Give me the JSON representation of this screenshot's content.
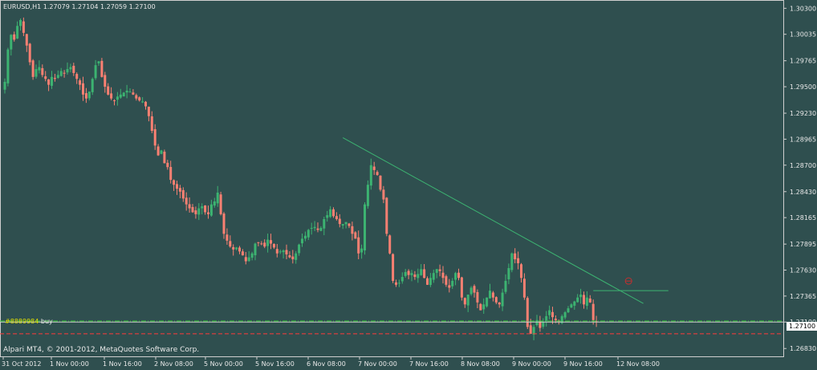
{
  "chart": {
    "symbol_header": "EURUSD,H1  1.27079 1.27104 1.27059 1.27100",
    "copyright": "Alpari MT4, © 2001-2012, MetaQuotes Software Corp.",
    "order_tag": "#8889984",
    "order_type": "buy",
    "current_price": "1.27100"
  },
  "colors": {
    "background": "#2f4f4f",
    "bull_candle": "#3cb371",
    "bear_candle": "#fa8072",
    "axis_text": "#e8e8e8",
    "trendline": "#3cb371",
    "order_line": "#32cd32",
    "sl_line": "#ff3b3b"
  },
  "chart_data": {
    "type": "candlestick",
    "price_ticks": [
      "1.30300",
      "1.30035",
      "1.29765",
      "1.29500",
      "1.29230",
      "1.28965",
      "1.28700",
      "1.28430",
      "1.28165",
      "1.27895",
      "1.27630",
      "1.27365",
      "1.27100",
      "1.26830"
    ],
    "time_ticks": [
      "31 Oct 2012",
      "1 Nov 00:00",
      "1 Nov 16:00",
      "2 Nov 08:00",
      "5 Nov 00:00",
      "5 Nov 16:00",
      "6 Nov 08:00",
      "7 Nov 00:00",
      "7 Nov 16:00",
      "8 Nov 08:00",
      "9 Nov 00:00",
      "9 Nov 16:00",
      "12 Nov 08:00"
    ],
    "ylim": [
      1.2675,
      1.3036
    ],
    "last_close": 1.271,
    "order_open_price": 1.2711,
    "stop_loss_price": 1.2698,
    "trendline": [
      {
        "bar": 108,
        "price": 1.2898
      },
      {
        "bar": 204,
        "price": 1.2729
      }
    ],
    "horizontal_segment": {
      "from_bar": 188,
      "to_bar": 212,
      "price": 1.2742
    },
    "closes": [
      1.2955,
      1.2988,
      1.3003,
      1.2998,
      1.3012,
      1.3018,
      1.3005,
      1.2992,
      1.2975,
      1.296,
      1.2968,
      1.297,
      1.2962,
      1.2958,
      1.2952,
      1.296,
      1.2958,
      1.2962,
      1.2966,
      1.2964,
      1.2968,
      1.297,
      1.2964,
      1.2958,
      1.2952,
      1.2942,
      1.2938,
      1.2945,
      1.2958,
      1.2972,
      1.2976,
      1.296,
      1.295,
      1.2942,
      1.2938,
      1.2936,
      1.294,
      1.2942,
      1.2944,
      1.2946,
      1.2945,
      1.2942,
      1.2938,
      1.2936,
      1.2935,
      1.293,
      1.292,
      1.2905,
      1.289,
      1.288,
      1.2885,
      1.2872,
      1.2868,
      1.2855,
      1.285,
      1.2846,
      1.2843,
      1.2836,
      1.283,
      1.2826,
      1.2822,
      1.282,
      1.2826,
      1.2828,
      1.2822,
      1.282,
      1.283,
      1.2833,
      1.2842,
      1.282,
      1.28,
      1.2793,
      1.2787,
      1.2784,
      1.2786,
      1.2782,
      1.2778,
      1.2772,
      1.2776,
      1.278,
      1.279,
      1.2791,
      1.279,
      1.2787,
      1.2794,
      1.279,
      1.2786,
      1.278,
      1.2782,
      1.2783,
      1.2779,
      1.2776,
      1.2774,
      1.278,
      1.2789,
      1.2795,
      1.2798,
      1.2804,
      1.2806,
      1.2807,
      1.2804,
      1.2806,
      1.2815,
      1.2819,
      1.2825,
      1.2818,
      1.2815,
      1.281,
      1.281,
      1.2812,
      1.2808,
      1.28,
      1.2795,
      1.278,
      1.2785,
      1.283,
      1.285,
      1.287,
      1.2865,
      1.286,
      1.2845,
      1.2835,
      1.28,
      1.278,
      1.2752,
      1.2748,
      1.275,
      1.2756,
      1.2761,
      1.2758,
      1.276,
      1.2756,
      1.2759,
      1.2764,
      1.2755,
      1.2748,
      1.2755,
      1.276,
      1.2764,
      1.2762,
      1.2755,
      1.2748,
      1.2745,
      1.2752,
      1.276,
      1.2755,
      1.2735,
      1.2728,
      1.2738,
      1.2745,
      1.274,
      1.273,
      1.2722,
      1.2728,
      1.2735,
      1.2742,
      1.2735,
      1.273,
      1.2728,
      1.274,
      1.2752,
      1.2765,
      1.278,
      1.2774,
      1.277,
      1.2755,
      1.2735,
      1.2705,
      1.2698,
      1.2705,
      1.2712,
      1.2704,
      1.271,
      1.2716,
      1.2722,
      1.2715,
      1.2712,
      1.271,
      1.2716,
      1.272,
      1.2724,
      1.2728,
      1.2731,
      1.2735,
      1.2738,
      1.2728,
      1.2735,
      1.273,
      1.2712,
      1.271
    ]
  }
}
